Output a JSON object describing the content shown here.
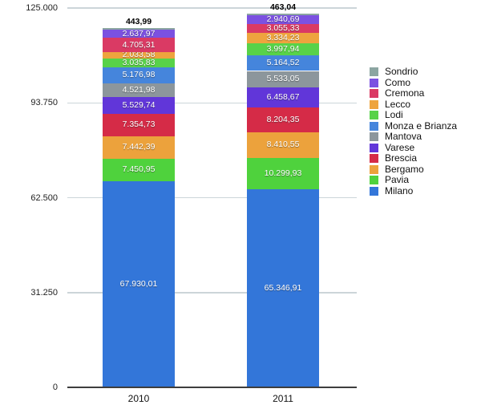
{
  "chart_data": {
    "type": "bar",
    "stacked": true,
    "title": "",
    "xlabel": "",
    "ylabel": "",
    "grid": true,
    "legend_position": "right",
    "categories": [
      "2010",
      "2011"
    ],
    "ylim": [
      0,
      125000
    ],
    "yticks": [
      0,
      31250,
      62500,
      93750,
      125000
    ],
    "ytick_labels": [
      "0",
      "31.250",
      "62.500",
      "93.750",
      "125.000"
    ],
    "series": [
      {
        "name": "Milano",
        "color": "#3376d9",
        "values": [
          67930.01,
          65346.91
        ],
        "labels": [
          "67.930,01",
          "65.346,91"
        ]
      },
      {
        "name": "Pavia",
        "color": "#4fd23d",
        "values": [
          7450.95,
          10299.93
        ],
        "labels": [
          "7.450,95",
          "10.299,93"
        ]
      },
      {
        "name": "Bergamo",
        "color": "#eca23c",
        "values": [
          7442.39,
          8410.55
        ],
        "labels": [
          "7.442,39",
          "8.410,55"
        ]
      },
      {
        "name": "Brescia",
        "color": "#d52b47",
        "values": [
          7354.73,
          8204.35
        ],
        "labels": [
          "7.354,73",
          "8.204,35"
        ]
      },
      {
        "name": "Varese",
        "color": "#6136d9",
        "values": [
          5529.74,
          6458.67
        ],
        "labels": [
          "5.529,74",
          "6.458,67"
        ]
      },
      {
        "name": "Mantova",
        "color": "#8c969c",
        "values": [
          4521.98,
          5533.05
        ],
        "labels": [
          "4.521,98",
          "5.533,05"
        ]
      },
      {
        "name": "Monza e Brianza",
        "color": "#4585dc",
        "values": [
          5176.98,
          5164.52
        ],
        "labels": [
          "5.176,98",
          "5.164,52"
        ]
      },
      {
        "name": "Lodi",
        "color": "#58d249",
        "values": [
          3035.83,
          3997.94
        ],
        "labels": [
          "3.035,83",
          "3.997,94"
        ]
      },
      {
        "name": "Lecco",
        "color": "#eea43e",
        "values": [
          2033.58,
          3334.23
        ],
        "labels": [
          "2.033,58",
          "3.334,23"
        ]
      },
      {
        "name": "Cremona",
        "color": "#da3a64",
        "values": [
          4705.31,
          3055.33
        ],
        "labels": [
          "4.705,31",
          "3.055,33"
        ]
      },
      {
        "name": "Como",
        "color": "#7b51e1",
        "values": [
          2637.97,
          2940.69
        ],
        "labels": [
          "2.637,97",
          "2.940,69"
        ]
      },
      {
        "name": "Sondrio",
        "color": "#8ba5a1",
        "values": [
          443.99,
          463.04
        ],
        "labels": [
          "443,99",
          "463,04"
        ],
        "label_outside": true
      }
    ],
    "legend_order": [
      "Sondrio",
      "Como",
      "Cremona",
      "Lecco",
      "Lodi",
      "Monza e Brianza",
      "Mantova",
      "Varese",
      "Brescia",
      "Bergamo",
      "Pavia",
      "Milano"
    ]
  }
}
